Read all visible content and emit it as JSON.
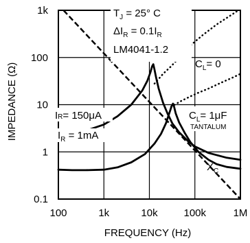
{
  "chart_data": {
    "type": "line",
    "xlabel": "FREQUENCY (Hz)",
    "ylabel": "IMPEDANCE (Ω)",
    "x_scale": "log",
    "y_scale": "log",
    "xlim": [
      100,
      1000000
    ],
    "ylim": [
      0.1,
      1000
    ],
    "grid": true,
    "x_tick_labels": [
      "100",
      "1k",
      "10k",
      "100k",
      "1M"
    ],
    "x_tick_values": [
      100,
      1000,
      10000,
      100000,
      1000000
    ],
    "y_tick_labels": [
      "0.1",
      "1",
      "10",
      "100",
      "1k"
    ],
    "y_tick_values": [
      0.1,
      1,
      10,
      100,
      1000
    ],
    "annotations": {
      "tj": {
        "main": "T",
        "sub": "J",
        "rest": " = 25° C"
      },
      "di": {
        "pre": "ΔI",
        "sub1": "R",
        "mid": " = 0.1I",
        "sub2": "R"
      },
      "part": "LM4041-1.2",
      "cl0": {
        "main": "C",
        "sub": "L",
        "rest": "= 0"
      },
      "cl1": {
        "main": "C",
        "sub": "L",
        "rest": "= 1μF"
      },
      "tantalum": "TANTALUM",
      "ir150": {
        "main": "I",
        "sub": "R",
        "rest": "= 150μA"
      },
      "ir1m": {
        "main": "I",
        "sub": "R",
        "rest": " = 1mA"
      },
      "xc": {
        "main": "X",
        "sub": "C"
      }
    },
    "series": [
      {
        "style": "solid",
        "points": [
          [
            100,
            2.4
          ],
          [
            200,
            2.5
          ],
          [
            400,
            2.8
          ],
          [
            1000,
            3.8
          ],
          [
            2000,
            5.7
          ],
          [
            4000,
            10
          ],
          [
            7000,
            20
          ],
          [
            9000,
            32
          ],
          [
            10500,
            48
          ],
          [
            11500,
            65
          ],
          [
            12200,
            72
          ],
          [
            13000,
            55
          ],
          [
            14000,
            38
          ],
          [
            16000,
            22
          ],
          [
            20000,
            11
          ],
          [
            25000,
            6.5
          ],
          [
            32000,
            4
          ],
          [
            45000,
            2.6
          ],
          [
            70000,
            1.7
          ],
          [
            100000,
            1.3
          ],
          [
            200000,
            0.95
          ],
          [
            500000,
            0.75
          ],
          [
            1000000,
            0.68
          ]
        ]
      },
      {
        "style": "solid",
        "points": [
          [
            100,
            0.42
          ],
          [
            200,
            0.41
          ],
          [
            400,
            0.41
          ],
          [
            1000,
            0.42
          ],
          [
            2000,
            0.47
          ],
          [
            4000,
            0.6
          ],
          [
            8000,
            0.9
          ],
          [
            13000,
            1.5
          ],
          [
            18000,
            2.4
          ],
          [
            23000,
            4
          ],
          [
            28000,
            7
          ],
          [
            31000,
            9.5
          ],
          [
            33000,
            10.5
          ],
          [
            35000,
            9
          ],
          [
            38000,
            6.5
          ],
          [
            45000,
            4.2
          ],
          [
            60000,
            2.5
          ],
          [
            80000,
            1.6
          ],
          [
            120000,
            1.0
          ],
          [
            200000,
            0.68
          ],
          [
            300000,
            0.55
          ],
          [
            500000,
            0.48
          ],
          [
            1000000,
            0.44
          ]
        ]
      },
      {
        "style": "dashed",
        "points": [
          [
            130,
            1000
          ],
          [
            1000000,
            0.1
          ]
        ]
      },
      {
        "style": "dotted",
        "points": [
          [
            13000,
            28
          ],
          [
            20000,
            45
          ],
          [
            30000,
            65
          ],
          [
            50000,
            110
          ],
          [
            80000,
            180
          ],
          [
            150000,
            300
          ],
          [
            300000,
            500
          ],
          [
            700000,
            850
          ],
          [
            900000,
            1000
          ]
        ]
      },
      {
        "style": "dotted",
        "points": [
          [
            30000,
            9
          ],
          [
            50000,
            12
          ],
          [
            80000,
            15
          ],
          [
            120000,
            18
          ],
          [
            200000,
            22
          ],
          [
            400000,
            30
          ],
          [
            700000,
            38
          ],
          [
            1000000,
            45
          ]
        ]
      }
    ]
  }
}
